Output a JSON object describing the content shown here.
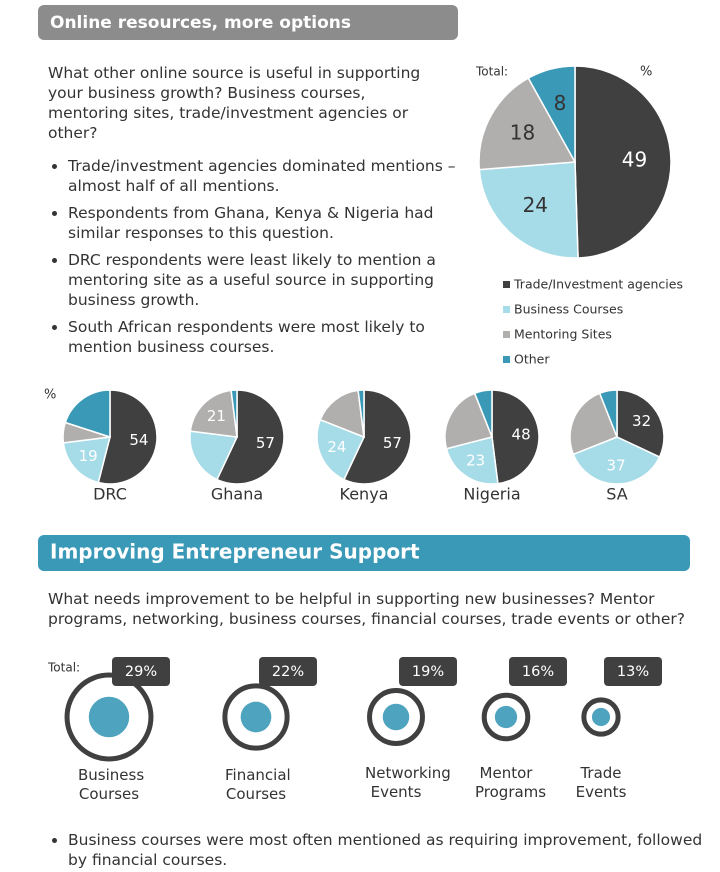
{
  "section1": {
    "title": "Online resources, more options",
    "question": "What other online source is useful in supporting your business growth? Business courses, mentoring sites, trade/investment agencies or other?",
    "bullets": [
      "Trade/investment agencies dominated mentions – almost half of all mentions.",
      "Respondents from Ghana, Kenya & Nigeria had similar responses to this question.",
      "DRC respondents were least likely to mention a mentoring site as a useful source in supporting business growth.",
      "South African respondents were most likely to mention business courses."
    ]
  },
  "chart_data": [
    {
      "type": "pie",
      "total_label": "Total:",
      "unit_label": "%",
      "categories": [
        "Trade/Investment agencies",
        "Business Courses",
        "Mentoring Sites",
        "Other"
      ],
      "colors": [
        "#404040",
        "#a6dbe8",
        "#b1aeae",
        "#3b99b8"
      ],
      "values": [
        49,
        24,
        18,
        8
      ]
    },
    {
      "type": "pie",
      "title": "DRC",
      "unit_label": "%",
      "values": [
        54,
        19,
        7,
        20
      ],
      "value_labels": [
        "54",
        "19",
        null,
        null
      ]
    },
    {
      "type": "pie",
      "title": "Ghana",
      "values": [
        57,
        20,
        21,
        2
      ],
      "value_labels": [
        "57",
        null,
        "21",
        null
      ]
    },
    {
      "type": "pie",
      "title": "Kenya",
      "values": [
        57,
        24,
        17,
        2
      ],
      "value_labels": [
        "57",
        "24",
        null,
        null
      ]
    },
    {
      "type": "pie",
      "title": "Nigeria",
      "values": [
        48,
        23,
        23,
        6
      ],
      "value_labels": [
        "48",
        "23",
        null,
        null
      ]
    },
    {
      "type": "pie",
      "title": "SA",
      "values": [
        32,
        37,
        25,
        6
      ],
      "value_labels": [
        "32",
        "37",
        null,
        null
      ]
    },
    {
      "type": "bubble",
      "total_label": "Total:",
      "categories": [
        "Business Courses",
        "Financial Courses",
        "Networking Events",
        "Mentor Programs",
        "Trade Events"
      ],
      "values": [
        29,
        22,
        19,
        16,
        13
      ],
      "value_labels": [
        "29%",
        "22%",
        "19%",
        "16%",
        "13%"
      ]
    }
  ],
  "section2": {
    "title": "Improving Entrepreneur Support",
    "question": "What needs improvement to be helpful in supporting new businesses? Mentor programs, networking, business courses, financial courses, trade events or other?",
    "bullets": [
      "Business courses were most often mentioned as requiring improvement, followed by financial courses."
    ]
  }
}
